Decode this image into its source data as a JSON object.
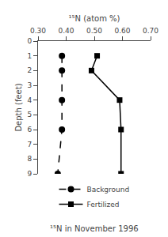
{
  "chart_data": {
    "type": "line",
    "xlabel": "¹⁵N (atom %)",
    "ylabel": "Depth (feet)",
    "annotations": [
      "¹⁵N in November 1996"
    ],
    "series": [
      {
        "name": "Background",
        "x": [
          0.385,
          0.385,
          0.385,
          0.385,
          0.37
        ],
        "values": [
          1,
          2,
          4,
          6,
          9
        ],
        "color": "#000000",
        "marker": "circle",
        "line_style": "dashed"
      },
      {
        "name": "Fertilized",
        "x": [
          0.51,
          0.49,
          0.59,
          0.595,
          0.595
        ],
        "values": [
          1,
          2,
          4,
          6,
          9
        ],
        "color": "#000000",
        "marker": "square",
        "line_style": "solid"
      }
    ],
    "xlim": [
      0.3,
      0.7
    ],
    "ylim": [
      9,
      0
    ],
    "xticks": [
      {
        "value": 0.3,
        "label": "0.30"
      },
      {
        "value": 0.4,
        "label": "0.40"
      },
      {
        "value": 0.5,
        "label": "0.50"
      },
      {
        "value": 0.6,
        "label": "0.60"
      },
      {
        "value": 0.7,
        "label": "0.70"
      }
    ],
    "yticks": [
      0,
      1,
      2,
      3,
      4,
      5,
      6,
      7,
      8,
      9
    ],
    "grid": false,
    "legend": "bottom"
  }
}
